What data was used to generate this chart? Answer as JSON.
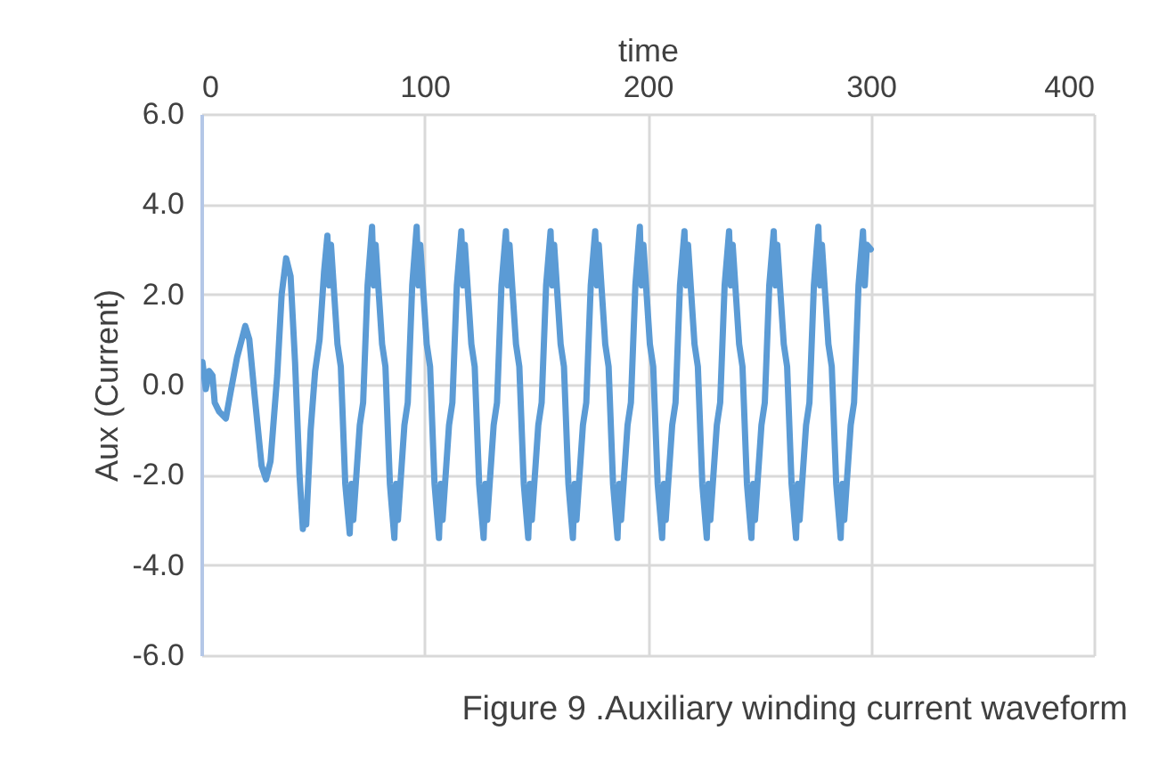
{
  "chart_data": {
    "type": "line",
    "xlabel": "time",
    "ylabel": "Aux (Current)",
    "annotations": [
      "Figure 9 .Auxiliary winding current waveform"
    ],
    "xlim": [
      0,
      400
    ],
    "xticks": [
      0,
      100,
      200,
      300,
      400
    ],
    "ylim": [
      -6,
      6
    ],
    "yticks": [
      {
        "value": -6,
        "label": "-6.0"
      },
      {
        "value": -4,
        "label": "-4.0"
      },
      {
        "value": -2,
        "label": "-2.0"
      },
      {
        "value": 0,
        "label": "0.0"
      },
      {
        "value": 2,
        "label": "2.0"
      },
      {
        "value": 4,
        "label": "4.0"
      },
      {
        "value": 6,
        "label": "6.0"
      }
    ],
    "grid": true,
    "legend": false,
    "line_style": "solid",
    "marker": "none",
    "series": [
      {
        "color": "#5b9bd5",
        "x": [
          0.5,
          2,
          3.5,
          5,
          6,
          8,
          11,
          13,
          16,
          19.7,
          21.5,
          24,
          27,
          29,
          31,
          34,
          36,
          38,
          40,
          42,
          44,
          45.5,
          46.2,
          47,
          49,
          51,
          53,
          55,
          56.5,
          57.3,
          58.1,
          61,
          62.5,
          64.5,
          66.5,
          67.3,
          68.1,
          71,
          72.5,
          74.5,
          76.5,
          77.3,
          78.1,
          81,
          82.5,
          84.5,
          86.5,
          87.3,
          88.1,
          91,
          92.5,
          94.5,
          96.5,
          97.3,
          98.1,
          101,
          102.5,
          104.5,
          106.5,
          107.3,
          108.1,
          111,
          112.5,
          114.5,
          116.5,
          117.3,
          118.1,
          121,
          122.5,
          124.5,
          126.5,
          127.3,
          128.1,
          131,
          132.5,
          134.5,
          136.5,
          137.3,
          138.1,
          141,
          142.5,
          144.5,
          146.5,
          147.3,
          148.1,
          151,
          152.5,
          154.5,
          156.5,
          157.3,
          158.1,
          161,
          162.5,
          164.5,
          166.5,
          167.3,
          168.1,
          171,
          172.5,
          174.5,
          176.5,
          177.3,
          178.1,
          181,
          182.5,
          184.5,
          186.5,
          187.3,
          188.1,
          191,
          192.5,
          194.5,
          196.5,
          197.3,
          198.1,
          201,
          202.5,
          204.5,
          206.5,
          207.3,
          208.1,
          211,
          212.5,
          214.5,
          216.5,
          217.3,
          218.1,
          221,
          222.5,
          224.5,
          226.5,
          227.3,
          228.1,
          231,
          232.5,
          234.5,
          236.5,
          237.3,
          238.1,
          241,
          242.5,
          244.5,
          246.5,
          247.3,
          248.1,
          251,
          252.5,
          254.5,
          256.5,
          257.3,
          258.1,
          261,
          262.5,
          264.5,
          266.5,
          267.3,
          268.1,
          271,
          272.5,
          274.5,
          276.5,
          277.3,
          278.1,
          281,
          282.5,
          284.5,
          286.5,
          287.3,
          288.1,
          291,
          292.5,
          294.5,
          296.5,
          297.3,
          298.3,
          300
        ],
        "values": [
          0.5,
          -0.1,
          0.3,
          0.2,
          -0.4,
          -0.6,
          -0.75,
          -0.2,
          0.6,
          1.3,
          1.0,
          -0.3,
          -1.8,
          -2.1,
          -1.7,
          0.2,
          2.0,
          2.8,
          2.4,
          0.5,
          -2.0,
          -3.2,
          -2.8,
          -3.1,
          -1.0,
          0.3,
          1.0,
          2.5,
          3.3,
          2.2,
          3.1,
          0.9,
          0.4,
          -2.2,
          -3.3,
          -2.2,
          -3.0,
          -0.9,
          -0.4,
          2.2,
          3.5,
          2.2,
          3.1,
          0.9,
          0.4,
          -2.2,
          -3.4,
          -2.2,
          -3.0,
          -0.9,
          -0.4,
          2.2,
          3.5,
          2.2,
          3.1,
          0.9,
          0.4,
          -2.2,
          -3.4,
          -2.2,
          -3.0,
          -0.9,
          -0.4,
          2.2,
          3.4,
          2.2,
          3.1,
          0.9,
          0.4,
          -2.2,
          -3.4,
          -2.2,
          -3.0,
          -0.9,
          -0.4,
          2.2,
          3.4,
          2.2,
          3.1,
          0.9,
          0.4,
          -2.2,
          -3.4,
          -2.2,
          -3.0,
          -0.9,
          -0.4,
          2.2,
          3.4,
          2.2,
          3.1,
          0.9,
          0.4,
          -2.2,
          -3.4,
          -2.2,
          -3.0,
          -0.9,
          -0.4,
          2.2,
          3.4,
          2.2,
          3.1,
          0.9,
          0.4,
          -2.2,
          -3.4,
          -2.2,
          -3.0,
          -0.9,
          -0.4,
          2.2,
          3.5,
          2.2,
          3.1,
          0.9,
          0.4,
          -2.2,
          -3.4,
          -2.2,
          -3.0,
          -0.9,
          -0.4,
          2.2,
          3.4,
          2.2,
          3.1,
          0.9,
          0.4,
          -2.2,
          -3.4,
          -2.2,
          -3.0,
          -0.9,
          -0.4,
          2.2,
          3.4,
          2.2,
          3.1,
          0.9,
          0.4,
          -2.2,
          -3.4,
          -2.2,
          -3.0,
          -0.9,
          -0.4,
          2.2,
          3.4,
          2.2,
          3.1,
          0.9,
          0.4,
          -2.2,
          -3.4,
          -2.2,
          -3.0,
          -0.9,
          -0.4,
          2.2,
          3.5,
          2.2,
          3.1,
          0.9,
          0.4,
          -2.2,
          -3.4,
          -2.2,
          -3.0,
          -0.9,
          -0.4,
          2.2,
          3.4,
          2.2,
          3.1,
          3.0
        ]
      }
    ]
  }
}
